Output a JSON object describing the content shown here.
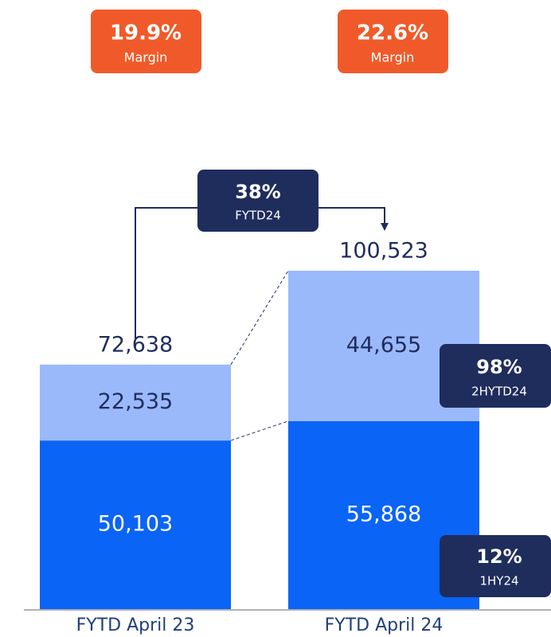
{
  "chart_data": {
    "type": "stacked_bar",
    "categories": [
      "FYTD April 23",
      "FYTD April 24"
    ],
    "series": [
      {
        "color": "#0a64f5",
        "values": [
          50103,
          55868
        ],
        "value_labels": [
          "50,103",
          "55,868"
        ]
      },
      {
        "color": "#9ab9fb",
        "values": [
          22535,
          44655
        ],
        "value_labels": [
          "22,535",
          "44,655"
        ]
      }
    ],
    "totals": [
      72638,
      100523
    ],
    "total_labels": [
      "72,638",
      "100,523"
    ],
    "annotations": {
      "margins": [
        {
          "value": "19.9%",
          "label": "Margin"
        },
        {
          "value": "22.6%",
          "label": "Margin"
        }
      ],
      "growth_total": {
        "value": "38%",
        "label": "FYTD24"
      },
      "growth_top": {
        "value": "98%",
        "label": "2HYTD24"
      },
      "growth_bottom": {
        "value": "12%",
        "label": "1HY24"
      }
    }
  }
}
